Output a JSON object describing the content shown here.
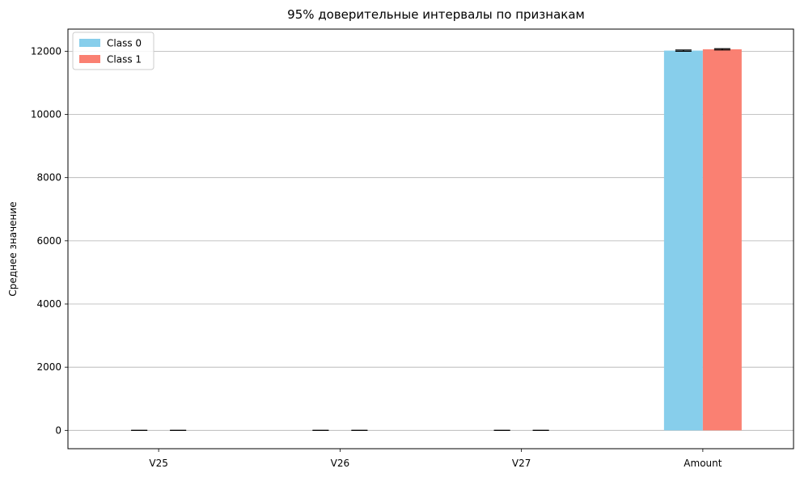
{
  "chart_data": {
    "type": "bar",
    "title": "95% доверительные интервалы по признакам",
    "xlabel": "",
    "ylabel": "Среднее значение",
    "categories": [
      "V25",
      "V26",
      "V27",
      "Amount"
    ],
    "series": [
      {
        "name": "Class 0",
        "color": "#87CEEB",
        "values": [
          0,
          0,
          0,
          12020
        ],
        "ci_half_width": [
          0,
          0,
          0,
          20
        ]
      },
      {
        "name": "Class 1",
        "color": "#FA8072",
        "values": [
          0,
          0,
          0,
          12060
        ],
        "ci_half_width": [
          0,
          0,
          0,
          20
        ]
      }
    ],
    "ylim": [
      -580,
      12700
    ],
    "yticks": [
      0,
      2000,
      4000,
      6000,
      8000,
      10000,
      12000
    ],
    "grid": "horizontal",
    "legend_position": "top-left",
    "errorbar_color": "#000000"
  }
}
